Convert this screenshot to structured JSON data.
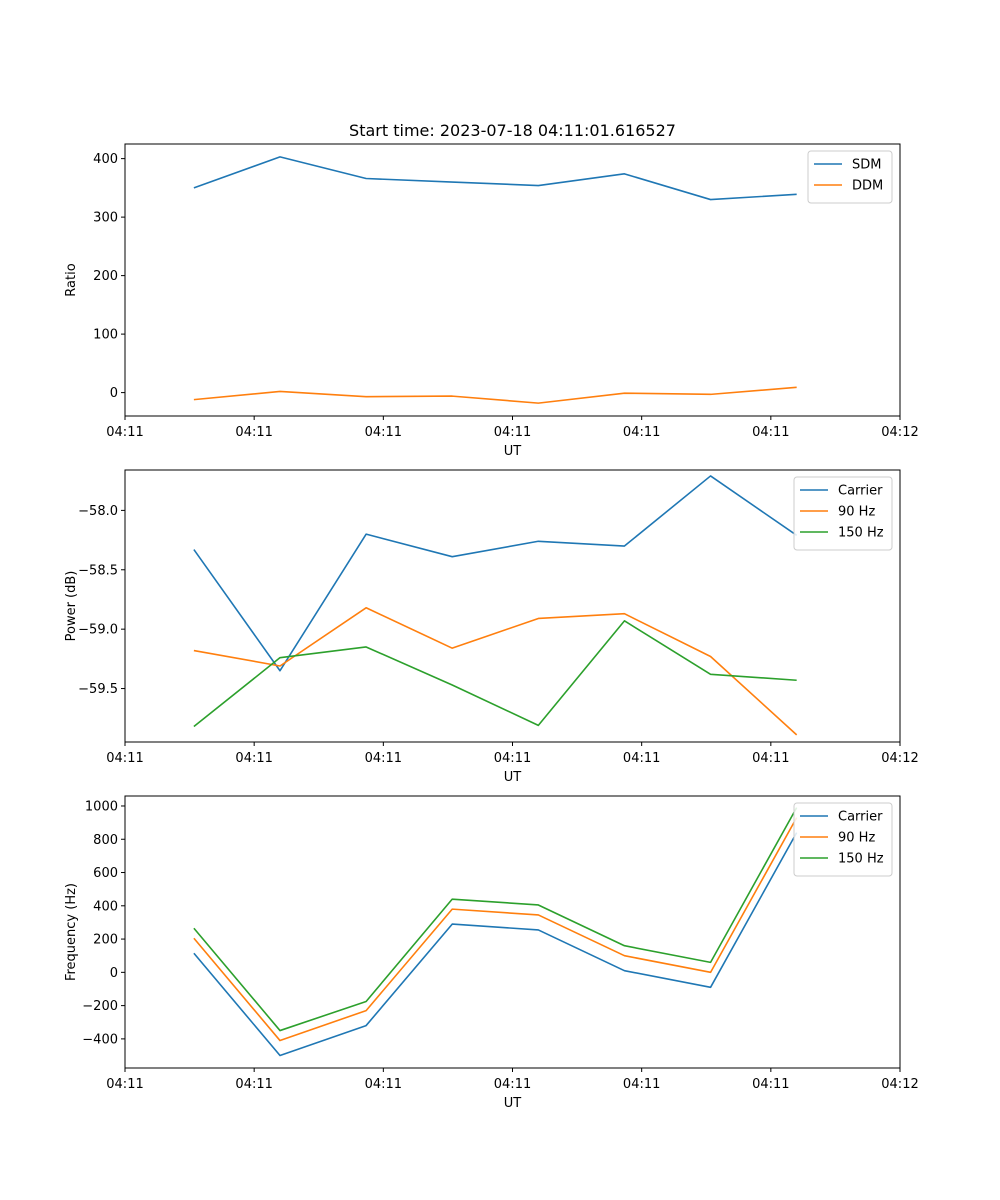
{
  "chart_data": [
    {
      "type": "line",
      "title": "Start time: 2023-07-18 04:11:01.616527",
      "xlabel": "UT",
      "ylabel": "Ratio",
      "x": [
        1,
        2,
        3,
        4,
        5,
        6,
        7,
        8
      ],
      "xlim": [
        0.2,
        9.2
      ],
      "xticks": [
        0.2,
        1.7,
        3.2,
        4.7,
        6.2,
        7.7,
        9.2
      ],
      "xtick_labels": [
        "04:11",
        "04:11",
        "04:11",
        "04:11",
        "04:11",
        "04:11",
        "04:12"
      ],
      "ylim": [
        -40,
        425
      ],
      "yticks": [
        0,
        100,
        200,
        300,
        400
      ],
      "ytick_labels": [
        "0",
        "100",
        "200",
        "300",
        "400"
      ],
      "legend_position": "top-right",
      "series": [
        {
          "name": "SDM",
          "color": "#1f77b4",
          "values": [
            350,
            403,
            366,
            360,
            354,
            374,
            330,
            339
          ]
        },
        {
          "name": "DDM",
          "color": "#ff7f0e",
          "values": [
            -12,
            2,
            -7,
            -6,
            -18,
            -1,
            -3,
            9
          ]
        }
      ]
    },
    {
      "type": "line",
      "title": "",
      "xlabel": "UT",
      "ylabel": "Power (dB)",
      "x": [
        1,
        2,
        3,
        4,
        5,
        6,
        7,
        8
      ],
      "xlim": [
        0.2,
        9.2
      ],
      "xticks": [
        0.2,
        1.7,
        3.2,
        4.7,
        6.2,
        7.7,
        9.2
      ],
      "xtick_labels": [
        "04:11",
        "04:11",
        "04:11",
        "04:11",
        "04:11",
        "04:11",
        "04:12"
      ],
      "ylim": [
        -59.95,
        -57.66
      ],
      "yticks": [
        -59.5,
        -59.0,
        -58.5,
        -58.0
      ],
      "ytick_labels": [
        "−59.5",
        "−59.0",
        "−58.5",
        "−58.0"
      ],
      "legend_position": "top-right",
      "series": [
        {
          "name": "Carrier",
          "color": "#1f77b4",
          "values": [
            -58.33,
            -59.35,
            -58.2,
            -58.39,
            -58.26,
            -58.3,
            -57.71,
            -58.21
          ]
        },
        {
          "name": "90 Hz",
          "color": "#ff7f0e",
          "values": [
            -59.18,
            -59.31,
            -58.82,
            -59.16,
            -58.91,
            -58.87,
            -59.23,
            -59.89
          ]
        },
        {
          "name": "150 Hz",
          "color": "#2ca02c",
          "values": [
            -59.82,
            -59.24,
            -59.15,
            -59.47,
            -59.81,
            -58.93,
            -59.38,
            -59.43
          ]
        }
      ]
    },
    {
      "type": "line",
      "title": "",
      "xlabel": "UT",
      "ylabel": "Frequency (Hz)",
      "x": [
        1,
        2,
        3,
        4,
        5,
        6,
        7,
        8
      ],
      "xlim": [
        0.2,
        9.2
      ],
      "xticks": [
        0.2,
        1.7,
        3.2,
        4.7,
        6.2,
        7.7,
        9.2
      ],
      "xtick_labels": [
        "04:11",
        "04:11",
        "04:11",
        "04:11",
        "04:11",
        "04:11",
        "04:12"
      ],
      "ylim": [
        -575,
        1060
      ],
      "yticks": [
        -400,
        -200,
        0,
        200,
        400,
        600,
        800,
        1000
      ],
      "ytick_labels": [
        "−400",
        "−200",
        "0",
        "200",
        "400",
        "600",
        "800",
        "1000"
      ],
      "legend_position": "top-right",
      "series": [
        {
          "name": "Carrier",
          "color": "#1f77b4",
          "values": [
            115,
            -500,
            -320,
            290,
            255,
            10,
            -90,
            840
          ]
        },
        {
          "name": "90 Hz",
          "color": "#ff7f0e",
          "values": [
            205,
            -410,
            -230,
            380,
            345,
            100,
            0,
            930
          ]
        },
        {
          "name": "150 Hz",
          "color": "#2ca02c",
          "values": [
            265,
            -350,
            -175,
            440,
            405,
            160,
            60,
            990
          ]
        }
      ]
    }
  ]
}
